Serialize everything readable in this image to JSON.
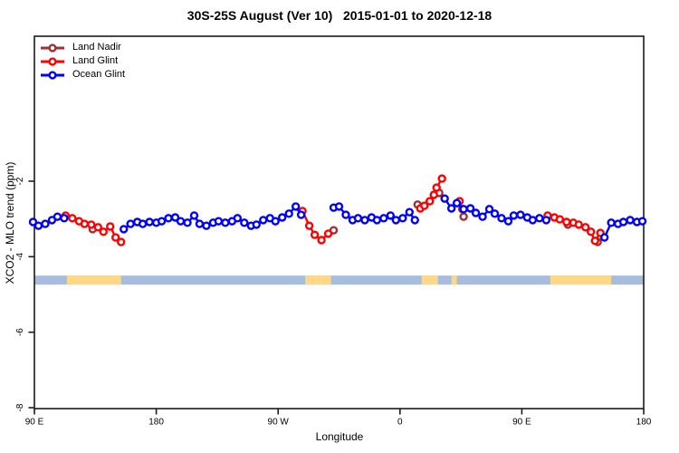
{
  "title": "30S-25S August (Ver 10)   2015-01-01 to 2020-12-18",
  "legend": [
    {
      "label": "Land Nadir",
      "color": "#9E3232"
    },
    {
      "label": "Land Glint",
      "color": "#FF0000"
    },
    {
      "label": "Ocean Glint",
      "color": "#0000FF"
    }
  ],
  "chart_data": {
    "type": "scatter",
    "title": "30S-25S August (Ver 10)   2015-01-01 to 2020-12-18",
    "xlabel": "Longitude",
    "ylabel": "XCO2 - MLO trend (ppm)",
    "x_axis": {
      "note": "deg = degrees along axis from left edge; 0=90E, 90=180, 180=90W, 270=0, 360=90E, 450=180",
      "range_deg": [
        0,
        450
      ],
      "ticks": [
        {
          "deg": 0,
          "label": "90 E"
        },
        {
          "deg": 90,
          "label": "180"
        },
        {
          "deg": 180,
          "label": "90 W"
        },
        {
          "deg": 270,
          "label": "0"
        },
        {
          "deg": 360,
          "label": "90 E"
        },
        {
          "deg": 450,
          "label": "180"
        }
      ]
    },
    "y_axis": {
      "range": [
        -8.05,
        1.85
      ],
      "ticks": [
        -2,
        -4,
        -6,
        -8
      ],
      "unit": "ppm"
    },
    "grid": false,
    "legend_position": "top-left-inside",
    "land_band": {
      "y_top_ppm": -4.5,
      "y_bottom_ppm": -4.74,
      "ocean_color": "#A8BCDE",
      "land_color": "#FFD885",
      "land_segments_deg": [
        [
          24,
          64
        ],
        [
          200,
          219
        ],
        [
          286,
          298
        ],
        [
          308,
          312
        ],
        [
          381,
          426
        ]
      ]
    },
    "series": [
      {
        "name": "Land Nadir",
        "color": "#9E3232",
        "marker": "open-circle",
        "segments": [
          [
            [
              43,
              -3.27
            ]
          ],
          [
            [
              221,
              -3.3
            ]
          ],
          [
            [
              283,
              -2.62
            ]
          ],
          [
            [
              299,
              -2.31
            ]
          ],
          [
            [
              316,
              -2.74
            ],
            [
              317,
              -2.94
            ]
          ],
          [
            [
              394,
              -3.15
            ]
          ],
          [
            [
              416,
              -3.61
            ]
          ]
        ]
      },
      {
        "name": "Land Glint",
        "color": "#FF0000",
        "marker": "open-circle",
        "segments": [
          [
            [
              23,
              -2.91
            ],
            [
              28,
              -2.98
            ],
            [
              33,
              -3.06
            ],
            [
              37,
              -3.13
            ],
            [
              42,
              -3.15
            ],
            [
              47,
              -3.22
            ],
            [
              51,
              -3.34
            ],
            [
              56,
              -3.2
            ],
            [
              60,
              -3.49
            ],
            [
              64,
              -3.61
            ]
          ],
          [
            [
              198,
              -2.79
            ],
            [
              203,
              -3.18
            ],
            [
              207,
              -3.42
            ],
            [
              212,
              -3.56
            ],
            [
              217,
              -3.39
            ]
          ],
          [
            [
              285,
              -2.72
            ],
            [
              288,
              -2.65
            ],
            [
              292,
              -2.53
            ],
            [
              295,
              -2.36
            ],
            [
              297,
              -2.17
            ],
            [
              301,
              -1.93
            ]
          ],
          [
            [
              314,
              -2.53
            ]
          ],
          [
            [
              379,
              -2.91
            ],
            [
              384,
              -2.96
            ],
            [
              388,
              -3.01
            ],
            [
              393,
              -3.08
            ],
            [
              398,
              -3.1
            ],
            [
              402,
              -3.15
            ],
            [
              407,
              -3.22
            ],
            [
              411,
              -3.34
            ],
            [
              414,
              -3.58
            ],
            [
              418,
              -3.37
            ]
          ]
        ]
      },
      {
        "name": "Ocean Glint",
        "color": "#0000FF",
        "marker": "open-circle",
        "segments": [
          [
            [
              -1,
              -3.08
            ],
            [
              3,
              -3.18
            ],
            [
              8,
              -3.13
            ],
            [
              13,
              -3.03
            ],
            [
              17,
              -2.94
            ],
            [
              22,
              -2.98
            ]
          ],
          [
            [
              66,
              -3.27
            ],
            [
              71,
              -3.13
            ],
            [
              76,
              -3.08
            ],
            [
              80,
              -3.13
            ],
            [
              85,
              -3.08
            ],
            [
              90,
              -3.1
            ],
            [
              94,
              -3.06
            ],
            [
              99,
              -2.98
            ],
            [
              104,
              -2.96
            ],
            [
              108,
              -3.06
            ],
            [
              113,
              -3.1
            ],
            [
              118,
              -2.91
            ],
            [
              122,
              -3.13
            ],
            [
              127,
              -3.18
            ],
            [
              132,
              -3.1
            ],
            [
              136,
              -3.06
            ],
            [
              141,
              -3.1
            ],
            [
              146,
              -3.06
            ],
            [
              150,
              -2.98
            ],
            [
              155,
              -3.1
            ],
            [
              160,
              -3.18
            ],
            [
              164,
              -3.15
            ],
            [
              169,
              -3.03
            ],
            [
              174,
              -2.98
            ],
            [
              178,
              -3.06
            ],
            [
              183,
              -2.96
            ],
            [
              188,
              -2.86
            ],
            [
              193,
              -2.67
            ],
            [
              197,
              -2.89
            ]
          ],
          [
            [
              221,
              -2.7
            ],
            [
              225,
              -2.67
            ],
            [
              230,
              -2.89
            ],
            [
              235,
              -3.03
            ],
            [
              239,
              -2.98
            ],
            [
              244,
              -3.03
            ],
            [
              249,
              -2.96
            ],
            [
              253,
              -3.03
            ],
            [
              258,
              -2.98
            ],
            [
              263,
              -2.91
            ],
            [
              267,
              -3.03
            ],
            [
              272,
              -2.98
            ],
            [
              277,
              -2.82
            ],
            [
              281,
              -3.03
            ]
          ],
          [
            [
              303,
              -2.46
            ],
            [
              308,
              -2.72
            ],
            [
              312,
              -2.58
            ],
            [
              317,
              -2.74
            ],
            [
              322,
              -2.72
            ],
            [
              326,
              -2.84
            ],
            [
              331,
              -2.94
            ],
            [
              336,
              -2.74
            ],
            [
              340,
              -2.86
            ],
            [
              345,
              -2.98
            ],
            [
              350,
              -3.06
            ],
            [
              354,
              -2.91
            ],
            [
              359,
              -2.89
            ],
            [
              364,
              -2.96
            ],
            [
              368,
              -3.03
            ],
            [
              373,
              -2.98
            ],
            [
              378,
              -3.03
            ]
          ],
          [
            [
              421,
              -3.49
            ],
            [
              426,
              -3.1
            ],
            [
              431,
              -3.13
            ],
            [
              435,
              -3.08
            ],
            [
              440,
              -3.03
            ],
            [
              445,
              -3.08
            ],
            [
              449,
              -3.06
            ]
          ]
        ]
      }
    ]
  }
}
